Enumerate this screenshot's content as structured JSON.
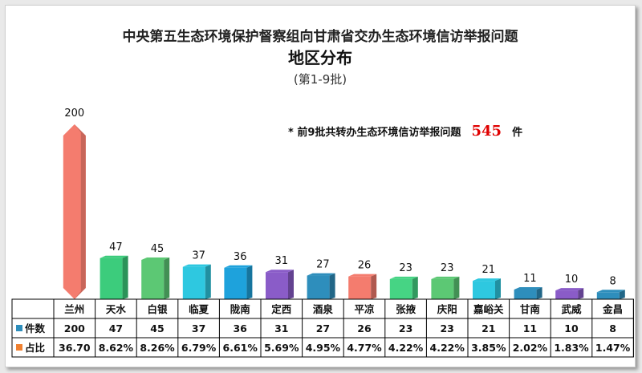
{
  "chart_data": {
    "type": "bar",
    "title": "中央第五生态环境保护督察组向甘肃省交办生态环境信访举报问题",
    "subtitle": "地区分布",
    "subtitle2": "(第1-9批)",
    "annotation": {
      "prefix": "*  前9批共转办生态环境信访举报问题",
      "total": "545",
      "suffix": "件"
    },
    "categories": [
      "兰州",
      "天水",
      "白银",
      "临夏",
      "陇南",
      "定西",
      "酒泉",
      "平凉",
      "张掖",
      "庆阳",
      "嘉峪关",
      "甘南",
      "武威",
      "金昌"
    ],
    "values": [
      200,
      47,
      45,
      37,
      36,
      31,
      27,
      26,
      23,
      23,
      21,
      11,
      10,
      8
    ],
    "value_labels": [
      "200",
      "47",
      "45",
      "37",
      "36",
      "31",
      "27",
      "26",
      "23",
      "23",
      "21",
      "11",
      "10",
      "8"
    ],
    "percent_labels": [
      "36.70",
      "8.62%",
      "8.26%",
      "6.79%",
      "6.61%",
      "5.69%",
      "4.95%",
      "4.77%",
      "4.22%",
      "4.22%",
      "3.85%",
      "2.02%",
      "1.83%",
      "1.47%"
    ],
    "bar_colors": [
      "#f47c6e",
      "#3ccc7c",
      "#5cc874",
      "#2ec8e0",
      "#1ea2dc",
      "#8a5cc8",
      "#2e8ebc",
      "#f47c6e",
      "#46d484",
      "#5cc874",
      "#2ec8e0",
      "#2e8ebc",
      "#8a5cc8",
      "#2e8ebc"
    ],
    "series": [
      {
        "name": "件数",
        "color": "#2e8ebc"
      },
      {
        "name": "占比",
        "color": "#f08030"
      }
    ],
    "ylim": [
      0,
      200
    ],
    "grid": false,
    "legend": "table-bottom"
  }
}
